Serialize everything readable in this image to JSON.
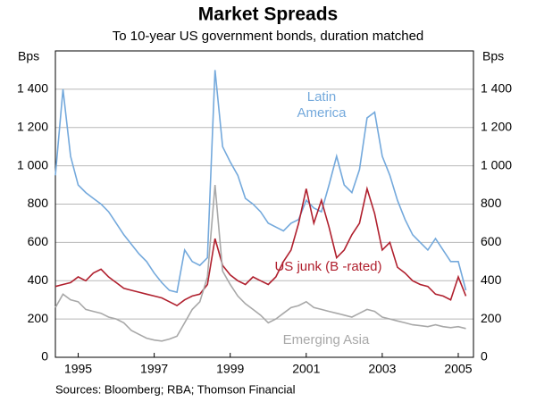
{
  "chart_data": {
    "type": "line",
    "title": "Market Spreads",
    "subtitle": "To 10-year US government bonds, duration matched",
    "source": "Sources: Bloomberg; RBA; Thomson Financial",
    "ylabel": "Bps",
    "y2label": "Bps",
    "x": [
      1994.4,
      1994.6,
      1994.8,
      1995.0,
      1995.2,
      1995.4,
      1995.6,
      1995.8,
      1996.0,
      1996.2,
      1996.4,
      1996.6,
      1996.8,
      1997.0,
      1997.2,
      1997.4,
      1997.6,
      1997.8,
      1998.0,
      1998.2,
      1998.4,
      1998.6,
      1998.8,
      1999.0,
      1999.2,
      1999.4,
      1999.6,
      1999.8,
      2000.0,
      2000.2,
      2000.4,
      2000.6,
      2000.8,
      2001.0,
      2001.2,
      2001.4,
      2001.6,
      2001.8,
      2002.0,
      2002.2,
      2002.4,
      2002.6,
      2002.8,
      2003.0,
      2003.2,
      2003.4,
      2003.6,
      2003.8,
      2004.0,
      2004.2,
      2004.4,
      2004.6,
      2004.8,
      2005.0,
      2005.2
    ],
    "series": [
      {
        "name": "Latin America",
        "color": "#74a9dc",
        "values": [
          950,
          1400,
          1050,
          900,
          860,
          830,
          800,
          760,
          700,
          640,
          590,
          540,
          500,
          440,
          390,
          350,
          340,
          560,
          500,
          480,
          520,
          1500,
          1100,
          1020,
          950,
          830,
          800,
          760,
          700,
          680,
          660,
          700,
          720,
          820,
          780,
          760,
          900,
          1050,
          900,
          860,
          980,
          1250,
          1280,
          1050,
          950,
          820,
          720,
          640,
          600,
          560,
          620,
          560,
          500,
          500,
          350
        ]
      },
      {
        "name": "US junk (B -rated)",
        "color": "#b0202e",
        "values": [
          370,
          380,
          390,
          420,
          400,
          440,
          460,
          420,
          390,
          360,
          350,
          340,
          330,
          320,
          310,
          290,
          270,
          300,
          320,
          330,
          380,
          620,
          480,
          430,
          400,
          380,
          420,
          400,
          380,
          420,
          500,
          560,
          700,
          880,
          700,
          820,
          680,
          520,
          560,
          640,
          700,
          880,
          750,
          560,
          600,
          470,
          440,
          400,
          380,
          370,
          330,
          320,
          300,
          420,
          320
        ]
      },
      {
        "name": "Emerging Asia",
        "color": "#a8a8a8",
        "values": [
          260,
          330,
          300,
          290,
          250,
          240,
          230,
          210,
          200,
          180,
          140,
          120,
          100,
          90,
          85,
          95,
          110,
          180,
          250,
          290,
          420,
          900,
          450,
          380,
          320,
          280,
          250,
          220,
          180,
          200,
          230,
          260,
          270,
          290,
          260,
          250,
          240,
          230,
          220,
          210,
          230,
          250,
          240,
          210,
          200,
          190,
          180,
          170,
          165,
          160,
          170,
          160,
          155,
          160,
          150
        ]
      }
    ],
    "xlim": [
      1994.4,
      2005.4
    ],
    "xticks": [
      1995,
      1997,
      1999,
      2001,
      2003,
      2005
    ],
    "ylim": [
      0,
      1600
    ],
    "yticks": [
      0,
      200,
      400,
      600,
      800,
      {
        "value": 1000,
        "label": "1 000"
      },
      {
        "value": 1200,
        "label": "1 200"
      },
      {
        "value": 1400,
        "label": "1 400"
      }
    ],
    "grid": true
  }
}
